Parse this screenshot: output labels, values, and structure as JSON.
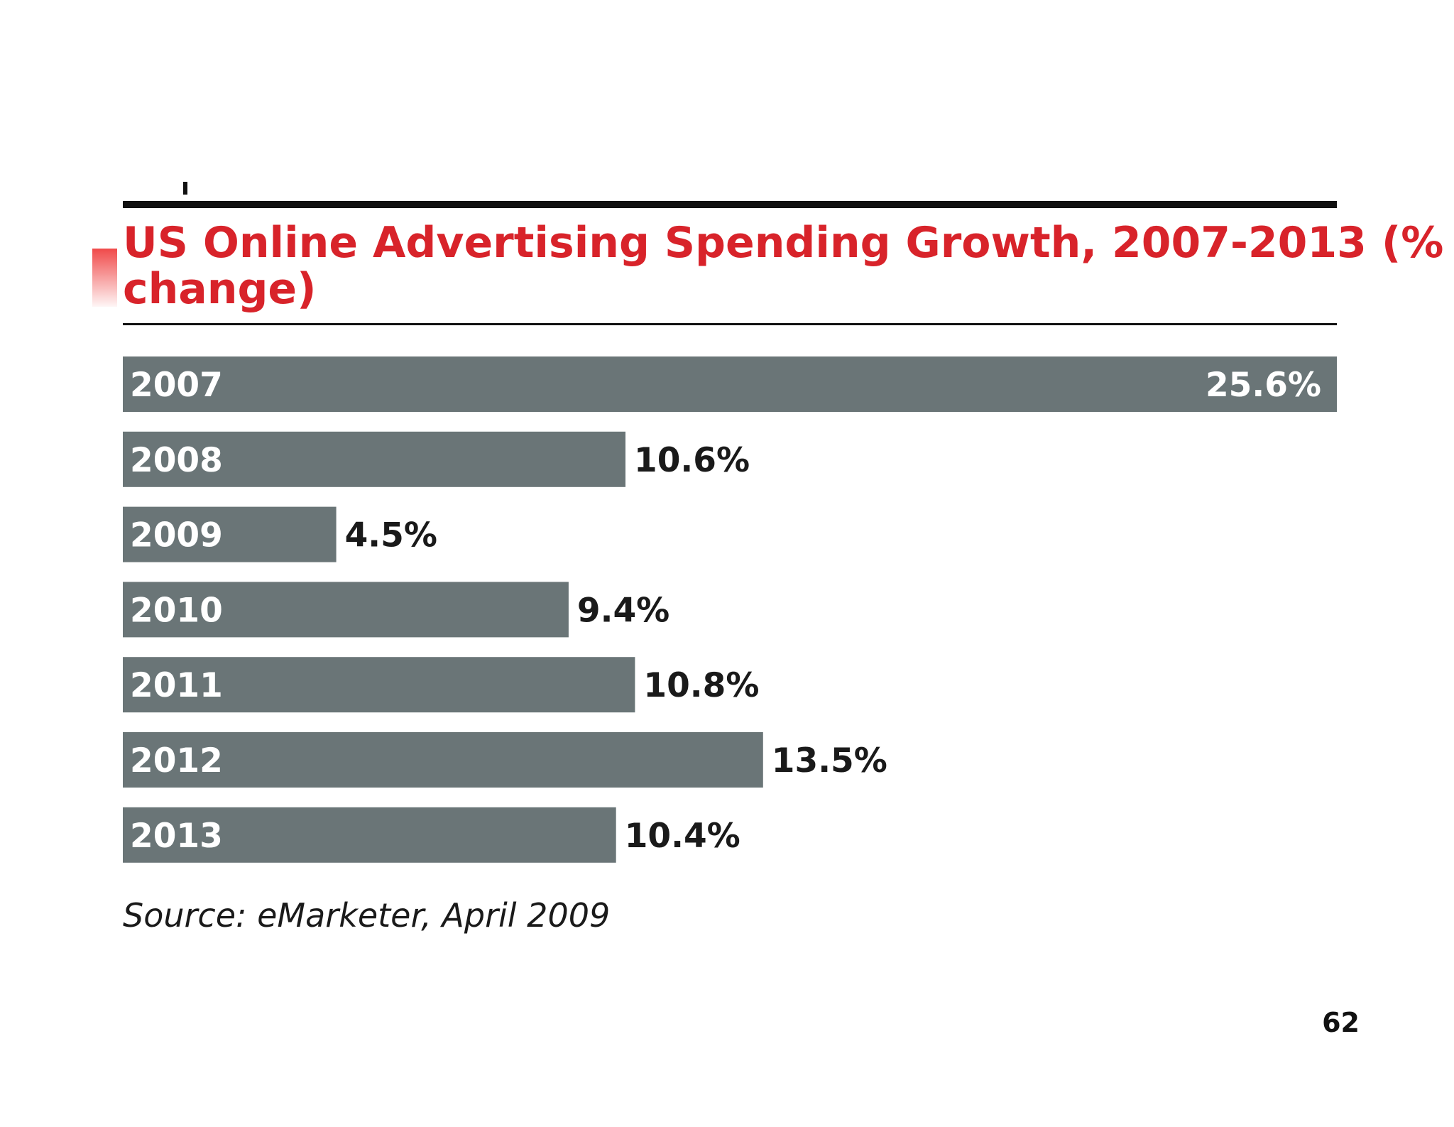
{
  "slide": {
    "page_number": "62"
  },
  "chart_data": {
    "type": "bar",
    "orientation": "horizontal",
    "title_line1": "US Online Advertising Spending Growth, 2007-2013 (%",
    "title_line2": "change)",
    "categories": [
      "2007",
      "2008",
      "2009",
      "2010",
      "2011",
      "2012",
      "2013"
    ],
    "values": [
      25.6,
      10.6,
      4.5,
      9.4,
      10.8,
      13.5,
      10.4
    ],
    "value_labels": [
      "25.6%",
      "10.6%",
      "4.5%",
      "9.4%",
      "10.8%",
      "13.5%",
      "10.4%"
    ],
    "xlim": [
      0,
      25.6
    ],
    "unit": "%",
    "source": "Source: eMarketer, April 2009",
    "colors": {
      "title": "#d8232a",
      "bar": "#6a7577",
      "bar_label": "#ffffff",
      "value_label": "#1a1a1a",
      "rule": "#111111",
      "source": "#1a1a1a",
      "accent": "#f04a4a"
    }
  }
}
